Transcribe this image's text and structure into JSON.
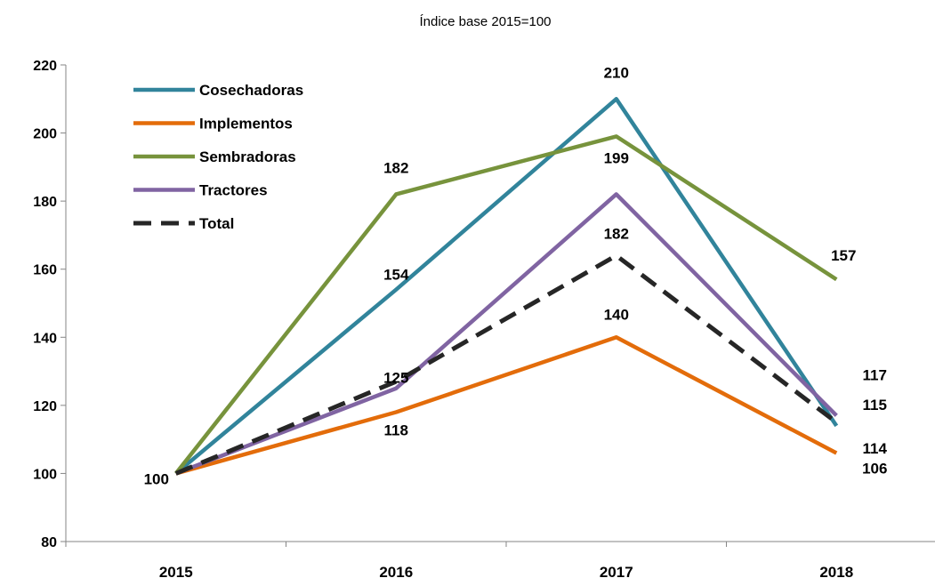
{
  "chart_data": {
    "type": "line",
    "subtitle": "Índice base 2015=100",
    "categories": [
      "2015",
      "2016",
      "2017",
      "2018"
    ],
    "ylim": [
      80,
      220
    ],
    "yticks": [
      80,
      100,
      120,
      140,
      160,
      180,
      200,
      220
    ],
    "grid": false,
    "legend_position": "top-left",
    "series": [
      {
        "name": "Cosechadoras",
        "color": "#31849B",
        "dash": false,
        "values": [
          100,
          154,
          210,
          114
        ]
      },
      {
        "name": "Implementos",
        "color": "#E36C0A",
        "dash": false,
        "values": [
          100,
          118,
          140,
          106
        ]
      },
      {
        "name": "Sembradoras",
        "color": "#77933C",
        "dash": false,
        "values": [
          100,
          182,
          199,
          157
        ]
      },
      {
        "name": "Tractores",
        "color": "#8064A2",
        "dash": false,
        "values": [
          100,
          125,
          182,
          117
        ]
      },
      {
        "name": "Total",
        "color": "#262626",
        "dash": true,
        "values": [
          100,
          127,
          164,
          115
        ]
      }
    ],
    "data_labels": [
      {
        "x": "2015",
        "y": 100,
        "text": "100"
      },
      {
        "x": "2016",
        "y": 182,
        "text": "182"
      },
      {
        "x": "2016",
        "y": 154,
        "text": "154"
      },
      {
        "x": "2016",
        "y": 125,
        "text": "125"
      },
      {
        "x": "2016",
        "y": 118,
        "text": "118"
      },
      {
        "x": "2017",
        "y": 210,
        "text": "210"
      },
      {
        "x": "2017",
        "y": 199,
        "text": "199"
      },
      {
        "x": "2017",
        "y": 182,
        "text": "182"
      },
      {
        "x": "2017",
        "y": 140,
        "text": "140"
      },
      {
        "x": "2018",
        "y": 157,
        "text": "157"
      },
      {
        "x": "2018",
        "y": 117,
        "text": "117"
      },
      {
        "x": "2018",
        "y": 115,
        "text": "115"
      },
      {
        "x": "2018",
        "y": 114,
        "text": "114"
      },
      {
        "x": "2018",
        "y": 106,
        "text": "106"
      }
    ]
  }
}
